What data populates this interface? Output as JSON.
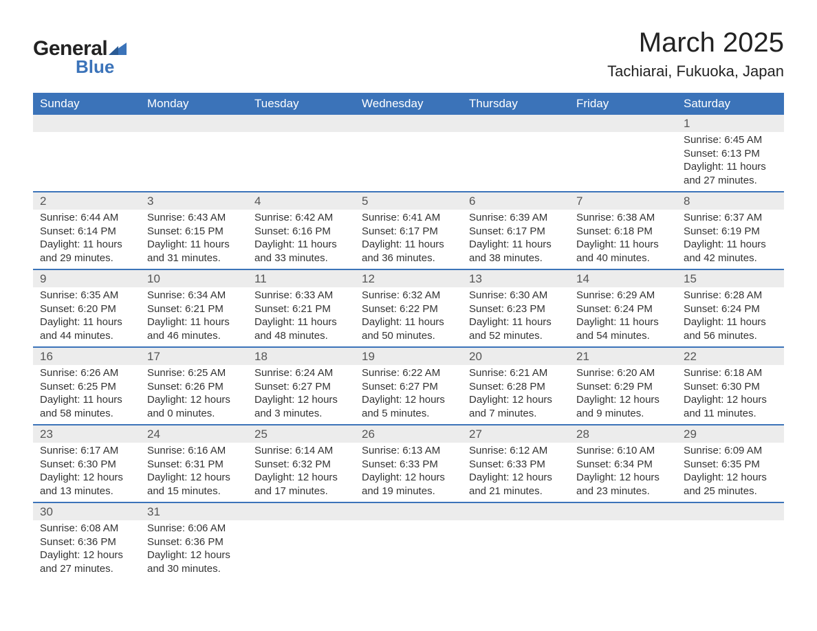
{
  "brand": {
    "word1": "General",
    "word2": "Blue"
  },
  "title": "March 2025",
  "location": "Tachiarai, Fukuoka, Japan",
  "colors": {
    "header_bg": "#3b73b9",
    "header_text": "#ffffff",
    "daynum_bg": "#ececec",
    "row_divider": "#3b73b9",
    "body_text": "#333333",
    "logo_accent": "#3b73b9"
  },
  "days_of_week": [
    "Sunday",
    "Monday",
    "Tuesday",
    "Wednesday",
    "Thursday",
    "Friday",
    "Saturday"
  ],
  "weeks": [
    [
      null,
      null,
      null,
      null,
      null,
      null,
      {
        "n": "1",
        "sunrise": "Sunrise: 6:45 AM",
        "sunset": "Sunset: 6:13 PM",
        "d1": "Daylight: 11 hours",
        "d2": "and 27 minutes."
      }
    ],
    [
      {
        "n": "2",
        "sunrise": "Sunrise: 6:44 AM",
        "sunset": "Sunset: 6:14 PM",
        "d1": "Daylight: 11 hours",
        "d2": "and 29 minutes."
      },
      {
        "n": "3",
        "sunrise": "Sunrise: 6:43 AM",
        "sunset": "Sunset: 6:15 PM",
        "d1": "Daylight: 11 hours",
        "d2": "and 31 minutes."
      },
      {
        "n": "4",
        "sunrise": "Sunrise: 6:42 AM",
        "sunset": "Sunset: 6:16 PM",
        "d1": "Daylight: 11 hours",
        "d2": "and 33 minutes."
      },
      {
        "n": "5",
        "sunrise": "Sunrise: 6:41 AM",
        "sunset": "Sunset: 6:17 PM",
        "d1": "Daylight: 11 hours",
        "d2": "and 36 minutes."
      },
      {
        "n": "6",
        "sunrise": "Sunrise: 6:39 AM",
        "sunset": "Sunset: 6:17 PM",
        "d1": "Daylight: 11 hours",
        "d2": "and 38 minutes."
      },
      {
        "n": "7",
        "sunrise": "Sunrise: 6:38 AM",
        "sunset": "Sunset: 6:18 PM",
        "d1": "Daylight: 11 hours",
        "d2": "and 40 minutes."
      },
      {
        "n": "8",
        "sunrise": "Sunrise: 6:37 AM",
        "sunset": "Sunset: 6:19 PM",
        "d1": "Daylight: 11 hours",
        "d2": "and 42 minutes."
      }
    ],
    [
      {
        "n": "9",
        "sunrise": "Sunrise: 6:35 AM",
        "sunset": "Sunset: 6:20 PM",
        "d1": "Daylight: 11 hours",
        "d2": "and 44 minutes."
      },
      {
        "n": "10",
        "sunrise": "Sunrise: 6:34 AM",
        "sunset": "Sunset: 6:21 PM",
        "d1": "Daylight: 11 hours",
        "d2": "and 46 minutes."
      },
      {
        "n": "11",
        "sunrise": "Sunrise: 6:33 AM",
        "sunset": "Sunset: 6:21 PM",
        "d1": "Daylight: 11 hours",
        "d2": "and 48 minutes."
      },
      {
        "n": "12",
        "sunrise": "Sunrise: 6:32 AM",
        "sunset": "Sunset: 6:22 PM",
        "d1": "Daylight: 11 hours",
        "d2": "and 50 minutes."
      },
      {
        "n": "13",
        "sunrise": "Sunrise: 6:30 AM",
        "sunset": "Sunset: 6:23 PM",
        "d1": "Daylight: 11 hours",
        "d2": "and 52 minutes."
      },
      {
        "n": "14",
        "sunrise": "Sunrise: 6:29 AM",
        "sunset": "Sunset: 6:24 PM",
        "d1": "Daylight: 11 hours",
        "d2": "and 54 minutes."
      },
      {
        "n": "15",
        "sunrise": "Sunrise: 6:28 AM",
        "sunset": "Sunset: 6:24 PM",
        "d1": "Daylight: 11 hours",
        "d2": "and 56 minutes."
      }
    ],
    [
      {
        "n": "16",
        "sunrise": "Sunrise: 6:26 AM",
        "sunset": "Sunset: 6:25 PM",
        "d1": "Daylight: 11 hours",
        "d2": "and 58 minutes."
      },
      {
        "n": "17",
        "sunrise": "Sunrise: 6:25 AM",
        "sunset": "Sunset: 6:26 PM",
        "d1": "Daylight: 12 hours",
        "d2": "and 0 minutes."
      },
      {
        "n": "18",
        "sunrise": "Sunrise: 6:24 AM",
        "sunset": "Sunset: 6:27 PM",
        "d1": "Daylight: 12 hours",
        "d2": "and 3 minutes."
      },
      {
        "n": "19",
        "sunrise": "Sunrise: 6:22 AM",
        "sunset": "Sunset: 6:27 PM",
        "d1": "Daylight: 12 hours",
        "d2": "and 5 minutes."
      },
      {
        "n": "20",
        "sunrise": "Sunrise: 6:21 AM",
        "sunset": "Sunset: 6:28 PM",
        "d1": "Daylight: 12 hours",
        "d2": "and 7 minutes."
      },
      {
        "n": "21",
        "sunrise": "Sunrise: 6:20 AM",
        "sunset": "Sunset: 6:29 PM",
        "d1": "Daylight: 12 hours",
        "d2": "and 9 minutes."
      },
      {
        "n": "22",
        "sunrise": "Sunrise: 6:18 AM",
        "sunset": "Sunset: 6:30 PM",
        "d1": "Daylight: 12 hours",
        "d2": "and 11 minutes."
      }
    ],
    [
      {
        "n": "23",
        "sunrise": "Sunrise: 6:17 AM",
        "sunset": "Sunset: 6:30 PM",
        "d1": "Daylight: 12 hours",
        "d2": "and 13 minutes."
      },
      {
        "n": "24",
        "sunrise": "Sunrise: 6:16 AM",
        "sunset": "Sunset: 6:31 PM",
        "d1": "Daylight: 12 hours",
        "d2": "and 15 minutes."
      },
      {
        "n": "25",
        "sunrise": "Sunrise: 6:14 AM",
        "sunset": "Sunset: 6:32 PM",
        "d1": "Daylight: 12 hours",
        "d2": "and 17 minutes."
      },
      {
        "n": "26",
        "sunrise": "Sunrise: 6:13 AM",
        "sunset": "Sunset: 6:33 PM",
        "d1": "Daylight: 12 hours",
        "d2": "and 19 minutes."
      },
      {
        "n": "27",
        "sunrise": "Sunrise: 6:12 AM",
        "sunset": "Sunset: 6:33 PM",
        "d1": "Daylight: 12 hours",
        "d2": "and 21 minutes."
      },
      {
        "n": "28",
        "sunrise": "Sunrise: 6:10 AM",
        "sunset": "Sunset: 6:34 PM",
        "d1": "Daylight: 12 hours",
        "d2": "and 23 minutes."
      },
      {
        "n": "29",
        "sunrise": "Sunrise: 6:09 AM",
        "sunset": "Sunset: 6:35 PM",
        "d1": "Daylight: 12 hours",
        "d2": "and 25 minutes."
      }
    ],
    [
      {
        "n": "30",
        "sunrise": "Sunrise: 6:08 AM",
        "sunset": "Sunset: 6:36 PM",
        "d1": "Daylight: 12 hours",
        "d2": "and 27 minutes."
      },
      {
        "n": "31",
        "sunrise": "Sunrise: 6:06 AM",
        "sunset": "Sunset: 6:36 PM",
        "d1": "Daylight: 12 hours",
        "d2": "and 30 minutes."
      },
      null,
      null,
      null,
      null,
      null
    ]
  ]
}
